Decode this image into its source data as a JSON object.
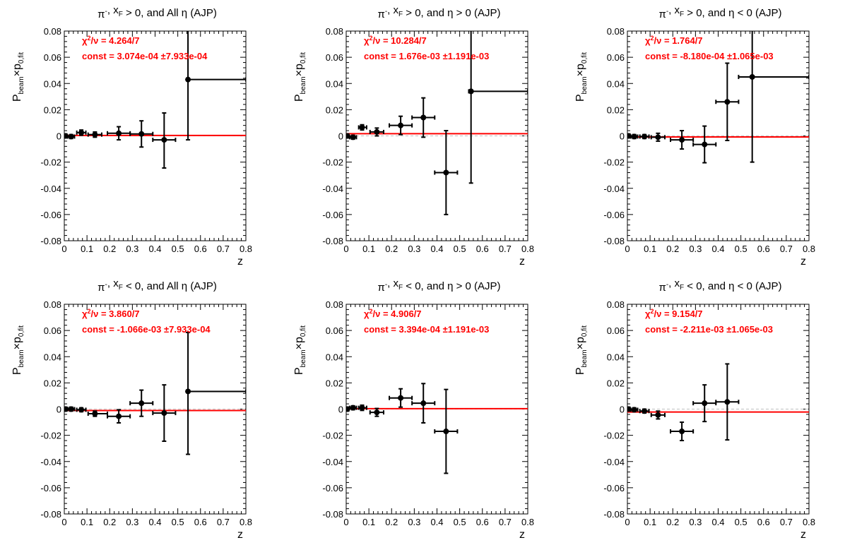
{
  "ui": {
    "y_label_main": "P",
    "y_label_sub1": "beam",
    "y_label_times": "×p",
    "y_label_sub2": "0,fit",
    "x_label": "z",
    "data_color": "#000000",
    "fit_color": "#ff0000",
    "zero_line_color": "#c0c0c0"
  },
  "chart_data": [
    {
      "type": "scatter",
      "title": "π⁻, x_F > 0, and All η (AJP)",
      "xlabel": "z",
      "ylabel": "P_beam×p_0,fit",
      "xlim": [
        0,
        0.8
      ],
      "ylim": [
        -0.08,
        0.08
      ],
      "xticks": [
        "0",
        "0.1",
        "0.2",
        "0.3",
        "0.4",
        "0.5",
        "0.6",
        "0.7",
        "0.8"
      ],
      "yticks": [
        "-0.08",
        "-0.06",
        "-0.04",
        "-0.02",
        "0",
        "0.02",
        "0.04",
        "0.06",
        "0.08"
      ],
      "stat_chi2": "χ²/ν = 4.264/7",
      "stat_const": "const = 3.074e-04  ±7.933e-04",
      "fit_value": 0.0003074,
      "points": [
        {
          "x": 0.005,
          "y": 0.0,
          "xlo": 0.0,
          "xhi": 0.01,
          "ylo": -0.0015,
          "yhi": 0.0015
        },
        {
          "x": 0.03,
          "y": -0.0005,
          "xlo": 0.015,
          "xhi": 0.045,
          "ylo": -0.002,
          "yhi": 0.001
        },
        {
          "x": 0.075,
          "y": 0.0025,
          "xlo": 0.055,
          "xhi": 0.095,
          "ylo": 0.0005,
          "yhi": 0.0045
        },
        {
          "x": 0.135,
          "y": 0.001,
          "xlo": 0.105,
          "xhi": 0.165,
          "ylo": -0.001,
          "yhi": 0.003
        },
        {
          "x": 0.24,
          "y": 0.002,
          "xlo": 0.19,
          "xhi": 0.29,
          "ylo": -0.003,
          "yhi": 0.007
        },
        {
          "x": 0.34,
          "y": 0.0015,
          "xlo": 0.29,
          "xhi": 0.39,
          "ylo": -0.0085,
          "yhi": 0.0115
        },
        {
          "x": 0.44,
          "y": -0.003,
          "xlo": 0.39,
          "xhi": 0.49,
          "ylo": -0.0245,
          "yhi": 0.0175
        },
        {
          "x": 0.545,
          "y": 0.043,
          "xlo": 0.54,
          "xhi": 0.8,
          "ylo": -0.003,
          "yhi": 0.08
        }
      ]
    },
    {
      "type": "scatter",
      "title": "π⁻, x_F > 0, and η > 0 (AJP)",
      "xlabel": "z",
      "ylabel": "P_beam×p_0,fit",
      "xlim": [
        0,
        0.8
      ],
      "ylim": [
        -0.08,
        0.08
      ],
      "xticks": [
        "0",
        "0.1",
        "0.2",
        "0.3",
        "0.4",
        "0.5",
        "0.6",
        "0.7",
        "0.8"
      ],
      "yticks": [
        "-0.08",
        "-0.06",
        "-0.04",
        "-0.02",
        "0",
        "0.02",
        "0.04",
        "0.06",
        "0.08"
      ],
      "stat_chi2": "χ²/ν = 10.284/7",
      "stat_const": "const = 1.676e-03  ±1.191e-03",
      "fit_value": 0.001676,
      "points": [
        {
          "x": 0.005,
          "y": 0.0,
          "xlo": 0.0,
          "xhi": 0.01,
          "ylo": -0.0015,
          "yhi": 0.0015
        },
        {
          "x": 0.03,
          "y": -0.001,
          "xlo": 0.015,
          "xhi": 0.045,
          "ylo": -0.0025,
          "yhi": 0.0005
        },
        {
          "x": 0.07,
          "y": 0.0065,
          "xlo": 0.055,
          "xhi": 0.09,
          "ylo": 0.0045,
          "yhi": 0.0085
        },
        {
          "x": 0.135,
          "y": 0.003,
          "xlo": 0.105,
          "xhi": 0.165,
          "ylo": 0.0,
          "yhi": 0.006
        },
        {
          "x": 0.24,
          "y": 0.008,
          "xlo": 0.19,
          "xhi": 0.29,
          "ylo": 0.001,
          "yhi": 0.015
        },
        {
          "x": 0.34,
          "y": 0.014,
          "xlo": 0.29,
          "xhi": 0.39,
          "ylo": -0.001,
          "yhi": 0.029
        },
        {
          "x": 0.44,
          "y": -0.028,
          "xlo": 0.39,
          "xhi": 0.49,
          "ylo": -0.06,
          "yhi": 0.004
        },
        {
          "x": 0.55,
          "y": 0.034,
          "xlo": 0.54,
          "xhi": 0.8,
          "ylo": -0.036,
          "yhi": 0.08
        }
      ]
    },
    {
      "type": "scatter",
      "title": "π⁻, x_F > 0, and η < 0 (AJP)",
      "xlabel": "z",
      "ylabel": "P_beam×p_0,fit",
      "xlim": [
        0,
        0.8
      ],
      "ylim": [
        -0.08,
        0.08
      ],
      "xticks": [
        "0",
        "0.1",
        "0.2",
        "0.3",
        "0.4",
        "0.5",
        "0.6",
        "0.7",
        "0.8"
      ],
      "yticks": [
        "-0.08",
        "-0.06",
        "-0.04",
        "-0.02",
        "0",
        "0.02",
        "0.04",
        "0.06",
        "0.08"
      ],
      "stat_chi2": "χ²/ν = 1.764/7",
      "stat_const": "const = -8.180e-04  ±1.065e-03",
      "fit_value": -0.000818,
      "points": [
        {
          "x": 0.005,
          "y": 0.0,
          "xlo": 0.0,
          "xhi": 0.01,
          "ylo": -0.0015,
          "yhi": 0.0015
        },
        {
          "x": 0.03,
          "y": -0.0005,
          "xlo": 0.015,
          "xhi": 0.045,
          "ylo": -0.002,
          "yhi": 0.001
        },
        {
          "x": 0.075,
          "y": -0.0005,
          "xlo": 0.055,
          "xhi": 0.095,
          "ylo": -0.002,
          "yhi": 0.001
        },
        {
          "x": 0.135,
          "y": -0.001,
          "xlo": 0.105,
          "xhi": 0.165,
          "ylo": -0.004,
          "yhi": 0.002
        },
        {
          "x": 0.24,
          "y": -0.003,
          "xlo": 0.19,
          "xhi": 0.29,
          "ylo": -0.01,
          "yhi": 0.004
        },
        {
          "x": 0.34,
          "y": -0.0065,
          "xlo": 0.29,
          "xhi": 0.39,
          "ylo": -0.0205,
          "yhi": 0.0075
        },
        {
          "x": 0.44,
          "y": 0.026,
          "xlo": 0.39,
          "xhi": 0.49,
          "ylo": -0.0035,
          "yhi": 0.0555
        },
        {
          "x": 0.55,
          "y": 0.045,
          "xlo": 0.49,
          "xhi": 0.8,
          "ylo": -0.02,
          "yhi": 0.08
        }
      ]
    },
    {
      "type": "scatter",
      "title": "π⁻, x_F < 0, and All η (AJP)",
      "xlabel": "z",
      "ylabel": "P_beam×p_0,fit",
      "xlim": [
        0,
        0.8
      ],
      "ylim": [
        -0.08,
        0.08
      ],
      "xticks": [
        "0",
        "0.1",
        "0.2",
        "0.3",
        "0.4",
        "0.5",
        "0.6",
        "0.7",
        "0.8"
      ],
      "yticks": [
        "-0.08",
        "-0.06",
        "-0.04",
        "-0.02",
        "0",
        "0.02",
        "0.04",
        "0.06",
        "0.08"
      ],
      "stat_chi2": "χ²/ν = 3.860/7",
      "stat_const": "const = -1.066e-03  ±7.933e-04",
      "fit_value": -0.001066,
      "points": [
        {
          "x": 0.005,
          "y": 0.0,
          "xlo": 0.0,
          "xhi": 0.01,
          "ylo": -0.0015,
          "yhi": 0.0015
        },
        {
          "x": 0.03,
          "y": 0.0,
          "xlo": 0.015,
          "xhi": 0.045,
          "ylo": -0.0015,
          "yhi": 0.0015
        },
        {
          "x": 0.075,
          "y": -0.0005,
          "xlo": 0.055,
          "xhi": 0.095,
          "ylo": -0.002,
          "yhi": 0.001
        },
        {
          "x": 0.135,
          "y": -0.0035,
          "xlo": 0.105,
          "xhi": 0.19,
          "ylo": -0.0055,
          "yhi": -0.0015
        },
        {
          "x": 0.24,
          "y": -0.0055,
          "xlo": 0.19,
          "xhi": 0.29,
          "ylo": -0.0105,
          "yhi": -0.0005
        },
        {
          "x": 0.34,
          "y": 0.0045,
          "xlo": 0.29,
          "xhi": 0.39,
          "ylo": -0.0055,
          "yhi": 0.0145
        },
        {
          "x": 0.44,
          "y": -0.003,
          "xlo": 0.39,
          "xhi": 0.49,
          "ylo": -0.0245,
          "yhi": 0.0185
        },
        {
          "x": 0.545,
          "y": 0.0135,
          "xlo": 0.54,
          "xhi": 0.8,
          "ylo": -0.0345,
          "yhi": 0.0585
        }
      ]
    },
    {
      "type": "scatter",
      "title": "π⁻, x_F < 0, and η > 0 (AJP)",
      "xlabel": "z",
      "ylabel": "P_beam×p_0,fit",
      "xlim": [
        0,
        0.8
      ],
      "ylim": [
        -0.08,
        0.08
      ],
      "xticks": [
        "0",
        "0.1",
        "0.2",
        "0.3",
        "0.4",
        "0.5",
        "0.6",
        "0.7",
        "0.8"
      ],
      "yticks": [
        "-0.08",
        "-0.06",
        "-0.04",
        "-0.02",
        "0",
        "0.02",
        "0.04",
        "0.06",
        "0.08"
      ],
      "stat_chi2": "χ²/ν = 4.906/7",
      "stat_const": "const = 3.394e-04  ±1.191e-03",
      "fit_value": 0.0003394,
      "points": [
        {
          "x": 0.005,
          "y": 0.0,
          "xlo": 0.0,
          "xhi": 0.01,
          "ylo": -0.0015,
          "yhi": 0.0015
        },
        {
          "x": 0.03,
          "y": 0.001,
          "xlo": 0.015,
          "xhi": 0.045,
          "ylo": -0.0005,
          "yhi": 0.0025
        },
        {
          "x": 0.07,
          "y": 0.001,
          "xlo": 0.055,
          "xhi": 0.09,
          "ylo": -0.001,
          "yhi": 0.003
        },
        {
          "x": 0.135,
          "y": -0.0025,
          "xlo": 0.105,
          "xhi": 0.165,
          "ylo": -0.0055,
          "yhi": 0.0005
        },
        {
          "x": 0.24,
          "y": 0.0085,
          "xlo": 0.19,
          "xhi": 0.29,
          "ylo": 0.0015,
          "yhi": 0.0155
        },
        {
          "x": 0.34,
          "y": 0.0045,
          "xlo": 0.29,
          "xhi": 0.39,
          "ylo": -0.0105,
          "yhi": 0.0195
        },
        {
          "x": 0.44,
          "y": -0.017,
          "xlo": 0.39,
          "xhi": 0.49,
          "ylo": -0.049,
          "yhi": 0.015
        }
      ]
    },
    {
      "type": "scatter",
      "title": "π⁻, x_F < 0, and η < 0 (AJP)",
      "xlabel": "z",
      "ylabel": "P_beam×p_0,fit",
      "xlim": [
        0,
        0.8
      ],
      "ylim": [
        -0.08,
        0.08
      ],
      "xticks": [
        "0",
        "0.1",
        "0.2",
        "0.3",
        "0.4",
        "0.5",
        "0.6",
        "0.7",
        "0.8"
      ],
      "yticks": [
        "-0.08",
        "-0.06",
        "-0.04",
        "-0.02",
        "0",
        "0.02",
        "0.04",
        "0.06",
        "0.08"
      ],
      "stat_chi2": "χ²/ν = 9.154/7",
      "stat_const": "const = -2.211e-03  ±1.065e-03",
      "fit_value": -0.002211,
      "points": [
        {
          "x": 0.005,
          "y": 0.0,
          "xlo": 0.0,
          "xhi": 0.01,
          "ylo": -0.0015,
          "yhi": 0.0015
        },
        {
          "x": 0.03,
          "y": -0.0005,
          "xlo": 0.015,
          "xhi": 0.045,
          "ylo": -0.002,
          "yhi": 0.001
        },
        {
          "x": 0.075,
          "y": -0.0015,
          "xlo": 0.055,
          "xhi": 0.095,
          "ylo": -0.003,
          "yhi": 0.0
        },
        {
          "x": 0.135,
          "y": -0.0045,
          "xlo": 0.105,
          "xhi": 0.165,
          "ylo": -0.0075,
          "yhi": -0.0015
        },
        {
          "x": 0.24,
          "y": -0.017,
          "xlo": 0.19,
          "xhi": 0.29,
          "ylo": -0.024,
          "yhi": -0.01
        },
        {
          "x": 0.34,
          "y": 0.0045,
          "xlo": 0.29,
          "xhi": 0.39,
          "ylo": -0.0095,
          "yhi": 0.0185
        },
        {
          "x": 0.44,
          "y": 0.0055,
          "xlo": 0.39,
          "xhi": 0.49,
          "ylo": -0.0235,
          "yhi": 0.0345
        }
      ]
    }
  ]
}
